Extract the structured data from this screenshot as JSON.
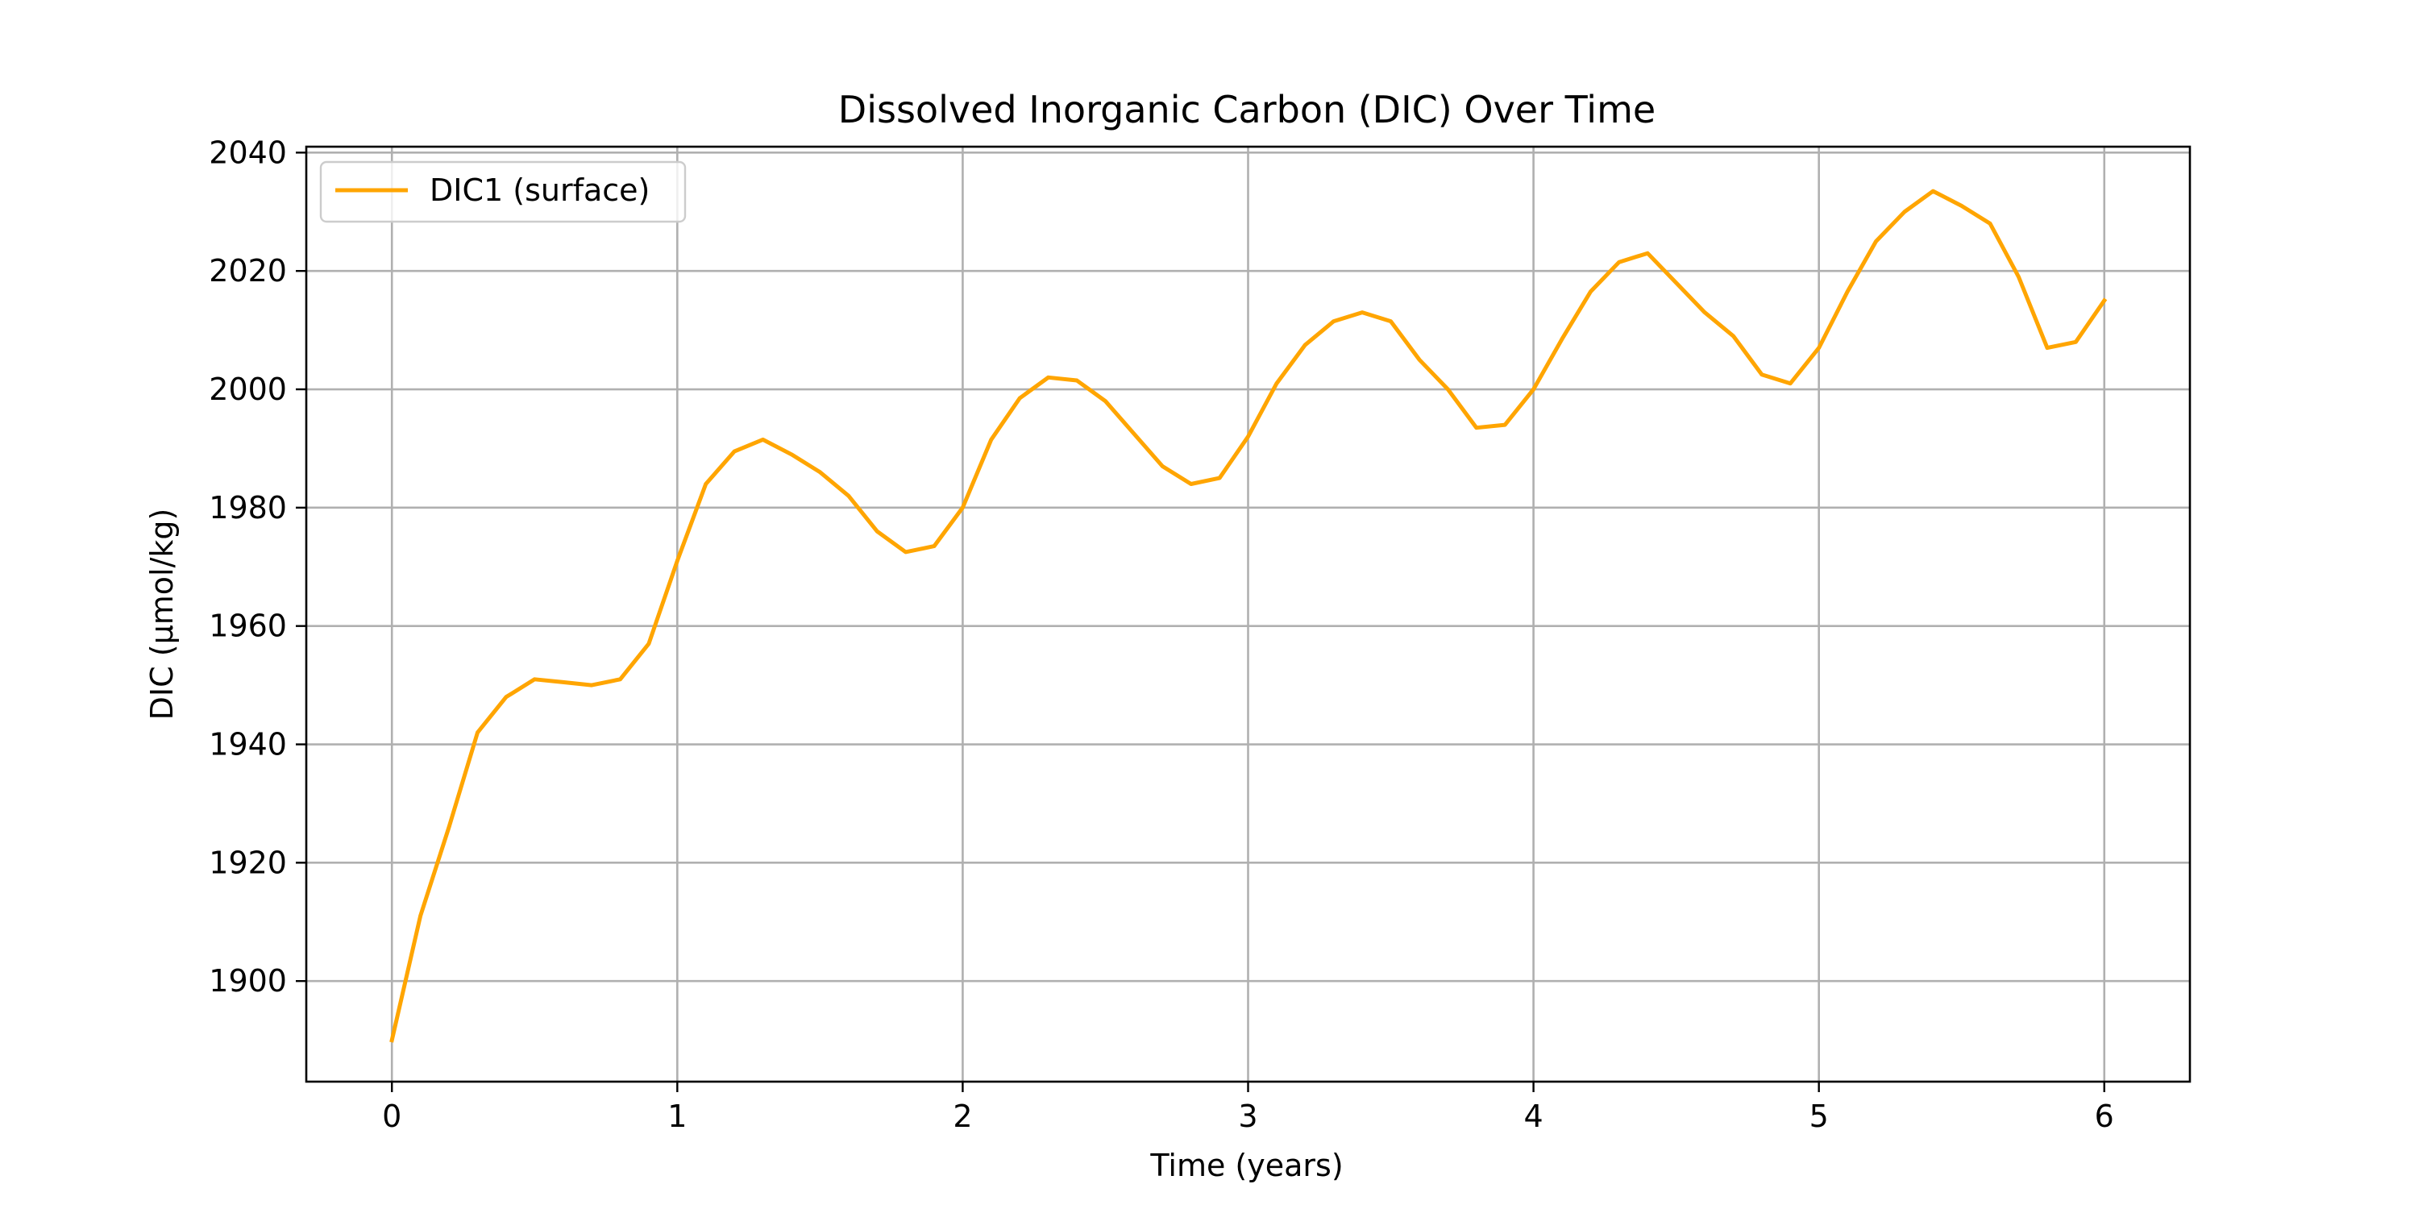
{
  "chart_data": {
    "type": "line",
    "title": "Dissolved Inorganic Carbon (DIC) Over Time",
    "xlabel": "Time (years)",
    "ylabel": "DIC (µmol/kg)",
    "xlim": [
      -0.3,
      6.3
    ],
    "ylim": [
      1883,
      2041
    ],
    "xticks": [
      0,
      1,
      2,
      3,
      4,
      5,
      6
    ],
    "xtick_labels": [
      "0",
      "1",
      "2",
      "3",
      "4",
      "5",
      "6"
    ],
    "yticks": [
      1900,
      1920,
      1940,
      1960,
      1980,
      2000,
      2020,
      2040
    ],
    "ytick_labels": [
      "1900",
      "1920",
      "1940",
      "1960",
      "1980",
      "2000",
      "2020",
      "2040"
    ],
    "grid": true,
    "legend_position": "top-left",
    "series": [
      {
        "name": "DIC1 (surface)",
        "color": "#FFA500",
        "x": [
          0,
          0.1,
          0.2,
          0.3,
          0.4,
          0.5,
          0.6,
          0.7,
          0.8,
          0.9,
          1.0,
          1.1,
          1.2,
          1.3,
          1.4,
          1.5,
          1.6,
          1.7,
          1.8,
          1.9,
          2.0,
          2.1,
          2.2,
          2.3,
          2.4,
          2.5,
          2.6,
          2.7,
          2.8,
          2.9,
          3.0,
          3.1,
          3.2,
          3.3,
          3.4,
          3.5,
          3.6,
          3.7,
          3.8,
          3.9,
          4.0,
          4.1,
          4.2,
          4.3,
          4.4,
          4.5,
          4.6,
          4.7,
          4.8,
          4.9,
          5.0,
          5.1,
          5.2,
          5.3,
          5.4,
          5.5,
          5.6,
          5.7,
          5.8,
          5.9,
          6.0
        ],
        "values": [
          1890,
          1911,
          1926,
          1942,
          1948,
          1951,
          1950.5,
          1950,
          1951,
          1957,
          1971,
          1984,
          1989.5,
          1991.5,
          1989,
          1986,
          1982,
          1976,
          1972.5,
          1973.5,
          1980,
          1991.5,
          1998.5,
          2002,
          2001.5,
          1998,
          1992.5,
          1987,
          1984,
          1985,
          1992,
          2001,
          2007.5,
          2011.5,
          2013,
          2011.5,
          2005,
          2000,
          1993.5,
          1994,
          2000,
          2008.5,
          2016.5,
          2021.5,
          2023,
          2018,
          2013,
          2009,
          2002.5,
          2001,
          2007,
          2016.5,
          2025,
          2030,
          2033.5,
          2031,
          2028,
          2019,
          2007,
          2008,
          2015
        ]
      }
    ]
  }
}
